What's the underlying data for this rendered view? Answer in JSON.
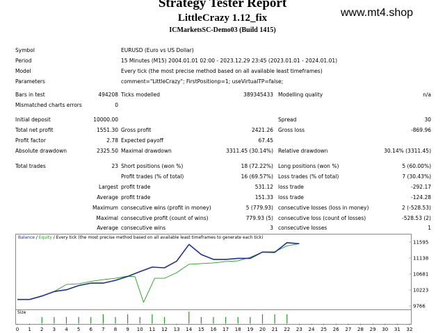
{
  "header": {
    "title": "Strategy Tester Report",
    "expert": "LittleCrazy 1.12_fix",
    "server": "ICMarketsSC-Demo03 (Build 1415)",
    "watermark": "www.mt4.shop"
  },
  "stats": {
    "symbol_label": "Symbol",
    "symbol_value": "EURUSD (Euro vs US Dollar)",
    "period_label": "Period",
    "period_value": "15 Minutes (M15) 2004.01.01 02:00 - 2023.12.29 23:45 (2023.01.01 - 2024.01.01)",
    "model_label": "Model",
    "model_value": "Every tick (the most precise method based on all available least timeframes)",
    "params_label": "Parameters",
    "params_value": "comment=\"LittleCrazy\"; FirstPositionp=1; useVirtualTP=false;",
    "bars_label": "Bars in test",
    "bars_value": "494208",
    "ticks_label": "Ticks modelled",
    "ticks_value": "389345433",
    "quality_label": "Modelling quality",
    "quality_value": "n/a",
    "mismatch_label": "Mismatched charts errors",
    "mismatch_value": "0",
    "deposit_label": "Initial deposit",
    "deposit_value": "10000.00",
    "spread_label": "Spread",
    "spread_value": "30",
    "netprofit_label": "Total net profit",
    "netprofit_value": "1551.30",
    "grossprofit_label": "Gross profit",
    "grossprofit_value": "2421.26",
    "grossloss_label": "Gross loss",
    "grossloss_value": "-869.96",
    "pf_label": "Profit factor",
    "pf_value": "2.78",
    "payoff_label": "Expected payoff",
    "payoff_value": "67.45",
    "absdd_label": "Absolute drawdown",
    "absdd_value": "2325.50",
    "maxdd_label": "Maximal drawdown",
    "maxdd_value": "3311.45 (30.14%)",
    "reldd_label": "Relative drawdown",
    "reldd_value": "30.14% (3311.45)",
    "trades_label": "Total trades",
    "trades_value": "23",
    "short_label": "Short positions (won %)",
    "short_value": "18 (72.22%)",
    "long_label": "Long positions (won %)",
    "long_value": "5 (60.00%)",
    "ptrades_label": "Profit trades (% of total)",
    "ptrades_value": "16 (69.57%)",
    "ltrades_label": "Loss trades (% of total)",
    "ltrades_value": "7 (30.43%)",
    "largest_label": "Largest",
    "largest_profit_label": "profit trade",
    "largest_profit_value": "531.12",
    "largest_loss_label": "loss trade",
    "largest_loss_value": "-292.17",
    "average_label": "Average",
    "average_profit_label": "profit trade",
    "average_profit_value": "151.33",
    "average_loss_label": "loss trade",
    "average_loss_value": "-124.28",
    "maximum_label": "Maximum",
    "maxwins_label": "consecutive wins (profit in money)",
    "maxwins_value": "5 (779.93)",
    "maxlosses_label": "consecutive losses (loss in money)",
    "maxlosses_value": "2 (-528.53)",
    "maximal_label": "Maximal",
    "maxprofit_label": "consecutive profit (count of wins)",
    "maxprofit_value": "779.93 (5)",
    "maxloss_label": "consecutive loss (count of losses)",
    "maxloss_value": "-528.53 (2)",
    "average2_label": "Average",
    "avgwins_label": "consecutive wins",
    "avgwins_value": "3",
    "avglosses_label": "consecutive losses",
    "avglosses_value": "1"
  },
  "chart_data": {
    "type": "line",
    "legend_text": [
      "Balance",
      "Equity",
      "Every tick (the most precise method based on all available least timeframes to generate each tick)"
    ],
    "size_label": "Size",
    "ylim": [
      9766,
      11700
    ],
    "y_ticks": [
      "11595",
      "11138",
      "10681",
      "10223",
      "9766"
    ],
    "x_ticks": [
      "0",
      "1",
      "2",
      "3",
      "4",
      "5",
      "6",
      "7",
      "8",
      "9",
      "10",
      "11",
      "12",
      "13",
      "14",
      "15",
      "16",
      "17",
      "18",
      "19",
      "20",
      "21",
      "22",
      "23",
      "24",
      "25",
      "26",
      "27",
      "28",
      "29",
      "30",
      "31",
      "32"
    ],
    "series": [
      {
        "name": "Balance",
        "color": "#1f2f8f",
        "points": [
          [
            0,
            9950
          ],
          [
            1,
            9950
          ],
          [
            2,
            10050
          ],
          [
            3,
            10180
          ],
          [
            4,
            10230
          ],
          [
            5,
            10350
          ],
          [
            6,
            10420
          ],
          [
            7,
            10420
          ],
          [
            8,
            10500
          ],
          [
            9,
            10610
          ],
          [
            10,
            10750
          ],
          [
            11,
            10880
          ],
          [
            12,
            10860
          ],
          [
            13,
            11050
          ],
          [
            14,
            11530
          ],
          [
            15,
            11240
          ],
          [
            16,
            11100
          ],
          [
            17,
            11100
          ],
          [
            18,
            11130
          ],
          [
            19,
            11130
          ],
          [
            20,
            11310
          ],
          [
            21,
            11300
          ],
          [
            22,
            11580
          ],
          [
            23,
            11550
          ]
        ]
      },
      {
        "name": "Equity",
        "color": "#1e9e1e",
        "points": [
          [
            0,
            9950
          ],
          [
            1,
            9950
          ],
          [
            2,
            10050
          ],
          [
            3,
            10180
          ],
          [
            4,
            10380
          ],
          [
            5,
            10400
          ],
          [
            6,
            10470
          ],
          [
            7,
            10520
          ],
          [
            8,
            10560
          ],
          [
            9,
            10620
          ],
          [
            9.6,
            10600
          ],
          [
            10.3,
            9870
          ],
          [
            11.2,
            10560
          ],
          [
            12,
            10560
          ],
          [
            13,
            10720
          ],
          [
            14,
            10960
          ],
          [
            15,
            10980
          ],
          [
            16,
            11000
          ],
          [
            17,
            11040
          ],
          [
            18,
            11060
          ],
          [
            19,
            11160
          ],
          [
            20,
            11310
          ],
          [
            21,
            11320
          ],
          [
            22,
            11490
          ],
          [
            23,
            11550
          ]
        ]
      }
    ],
    "size_values": [
      [
        2,
        1
      ],
      [
        3,
        1
      ],
      [
        4,
        1
      ],
      [
        5,
        1
      ],
      [
        6,
        1
      ],
      [
        7,
        2
      ],
      [
        8,
        1
      ],
      [
        9,
        2
      ],
      [
        10,
        1
      ],
      [
        11,
        2
      ],
      [
        12,
        1
      ],
      [
        14,
        3
      ],
      [
        15,
        1
      ],
      [
        16,
        1
      ],
      [
        17,
        1
      ],
      [
        18,
        1
      ],
      [
        19,
        1
      ],
      [
        20,
        2
      ],
      [
        21,
        2
      ],
      [
        22,
        2
      ]
    ]
  }
}
